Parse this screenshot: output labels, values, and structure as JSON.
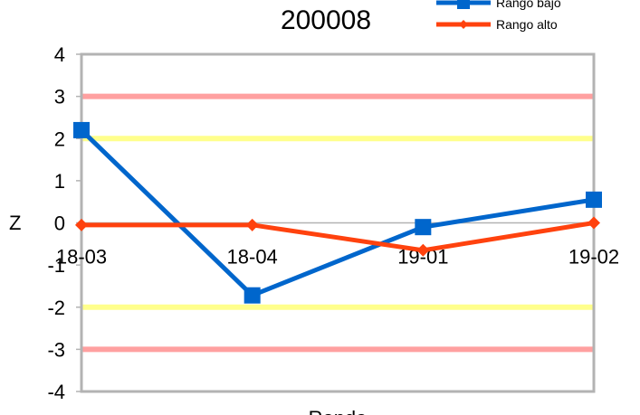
{
  "chart_data": {
    "type": "line",
    "title": "200008",
    "xlabel": "Ronda",
    "ylabel": "Z",
    "categories": [
      "18-03",
      "18-04",
      "19-01",
      "19-02"
    ],
    "ylim": [
      -4,
      4
    ],
    "yticks": [
      4,
      3,
      2,
      1,
      0,
      -1,
      -2,
      -3,
      -4
    ],
    "grid": false,
    "legend_position": "top-right",
    "series": [
      {
        "name": "Rango bajo",
        "values": [
          2.2,
          -1.72,
          -0.1,
          0.55
        ],
        "color": "#0066cc",
        "marker": "square"
      },
      {
        "name": "Rango alto",
        "values": [
          -0.05,
          -0.05,
          -0.65,
          0.0
        ],
        "color": "#ff420e",
        "marker": "diamond"
      }
    ],
    "reference_lines": [
      {
        "value": 3,
        "color": "#ff8080"
      },
      {
        "value": 2,
        "color": "#ffff66"
      },
      {
        "value": -2,
        "color": "#ffff66"
      },
      {
        "value": -3,
        "color": "#ff8080"
      }
    ]
  }
}
